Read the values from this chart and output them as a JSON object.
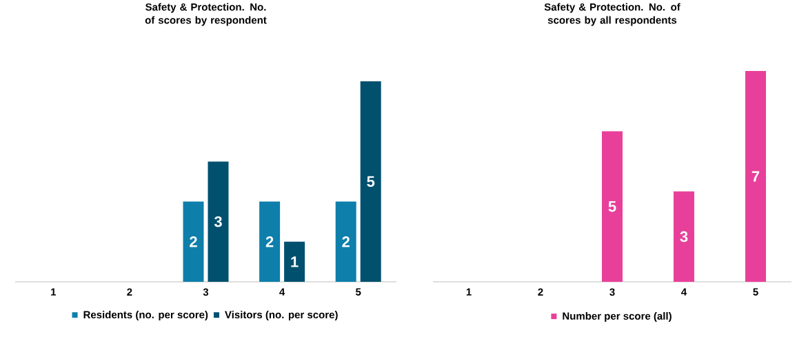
{
  "chart_data": [
    {
      "type": "bar",
      "title": "Safety & Protection. No. of scores by respondent",
      "categories": [
        "1",
        "2",
        "3",
        "4",
        "5"
      ],
      "ylim": [
        0,
        5
      ],
      "legend": "bottom",
      "series": [
        {
          "name": "Residents (no. per score)",
          "color": "#0e7fab",
          "values": [
            0,
            0,
            2,
            2,
            2
          ],
          "value_labels": [
            null,
            null,
            "2",
            "2",
            "2"
          ]
        },
        {
          "name": "Visitors (no. per score)",
          "color": "#00506e",
          "values": [
            0,
            0,
            3,
            1,
            5
          ],
          "value_labels": [
            null,
            null,
            "3",
            "1",
            "5"
          ]
        }
      ]
    },
    {
      "type": "bar",
      "title": "Safety & Protection. No. of scores by all respondents",
      "categories": [
        "1",
        "2",
        "3",
        "4",
        "5"
      ],
      "ylim": [
        0,
        7
      ],
      "legend": "bottom",
      "series": [
        {
          "name": "Number per score (all)",
          "color": "#e8409a",
          "values": [
            0,
            0,
            5,
            3,
            7
          ],
          "value_labels": [
            null,
            null,
            "5",
            "3",
            "7"
          ]
        }
      ]
    }
  ]
}
